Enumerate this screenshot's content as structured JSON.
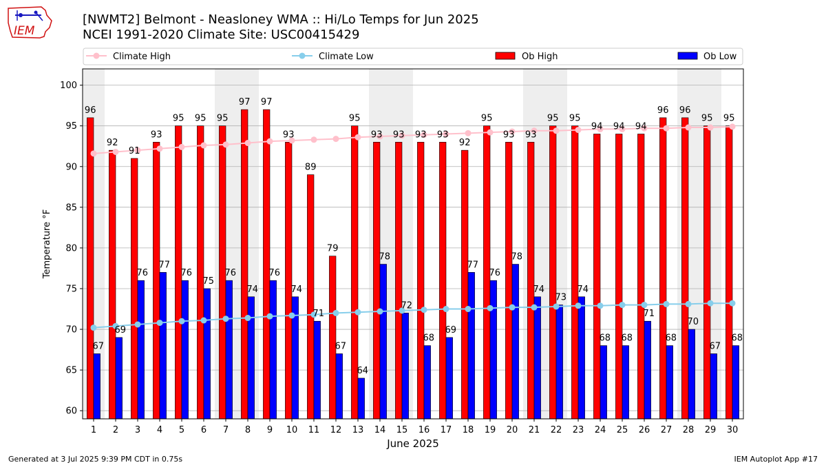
{
  "header": {
    "title_line1": "[NWMT2] Belmont - Neasloney WMA :: Hi/Lo Temps for Jun 2025",
    "title_line2": "NCEI 1991-2020 Climate Site: USC00415429",
    "logo_text": "IEM"
  },
  "footer": {
    "generated": "Generated at 3 Jul 2025 9:39 PM CDT in 0.75s",
    "app": "IEM Autoplot App #17"
  },
  "colors": {
    "ob_high": "#ff0000",
    "ob_low": "#0000ff",
    "climate_high": "#ffc0cb",
    "climate_low": "#87ceeb",
    "weekend_band": "#eeeeee",
    "grid": "#b0b0b0"
  },
  "chart_data": {
    "type": "bar",
    "xlabel": "June 2025",
    "ylabel": "Temperature °F",
    "ylim": [
      59,
      102
    ],
    "yticks": [
      60,
      65,
      70,
      75,
      80,
      85,
      90,
      95,
      100
    ],
    "grid": true,
    "legend_position": "top",
    "categories": [
      "1",
      "2",
      "3",
      "4",
      "5",
      "6",
      "7",
      "8",
      "9",
      "10",
      "11",
      "12",
      "13",
      "14",
      "15",
      "16",
      "17",
      "18",
      "19",
      "20",
      "21",
      "22",
      "23",
      "24",
      "25",
      "26",
      "27",
      "28",
      "29",
      "30"
    ],
    "shaded_days": [
      1,
      7,
      8,
      14,
      15,
      21,
      22,
      28,
      29
    ],
    "series": [
      {
        "name": "Ob High",
        "kind": "bar",
        "values": [
          96,
          92,
          91,
          93,
          95,
          95,
          95,
          97,
          97,
          93,
          89,
          79,
          95,
          93,
          93,
          93,
          93,
          92,
          95,
          93,
          93,
          95,
          95,
          94,
          94,
          94,
          96,
          96,
          95,
          95
        ]
      },
      {
        "name": "Ob Low",
        "kind": "bar",
        "values": [
          67,
          69,
          76,
          77,
          76,
          75,
          76,
          74,
          76,
          74,
          71,
          67,
          64,
          78,
          72,
          68,
          69,
          77,
          76,
          78,
          74,
          73,
          74,
          68,
          68,
          71,
          68,
          70,
          67,
          68
        ]
      },
      {
        "name": "Climate High",
        "kind": "line",
        "values": [
          91.6,
          91.8,
          92.0,
          92.2,
          92.4,
          92.6,
          92.7,
          92.9,
          93.1,
          93.2,
          93.3,
          93.4,
          93.6,
          93.7,
          93.8,
          93.9,
          94.0,
          94.1,
          94.2,
          94.3,
          94.4,
          94.4,
          94.5,
          94.6,
          94.6,
          94.7,
          94.7,
          94.8,
          94.8,
          94.9
        ]
      },
      {
        "name": "Climate Low",
        "kind": "line",
        "values": [
          70.2,
          70.4,
          70.6,
          70.8,
          71.0,
          71.1,
          71.3,
          71.4,
          71.6,
          71.7,
          71.8,
          72.0,
          72.1,
          72.2,
          72.3,
          72.4,
          72.5,
          72.5,
          72.6,
          72.7,
          72.7,
          72.8,
          72.9,
          72.9,
          73.0,
          73.0,
          73.1,
          73.1,
          73.2,
          73.2
        ]
      }
    ]
  }
}
